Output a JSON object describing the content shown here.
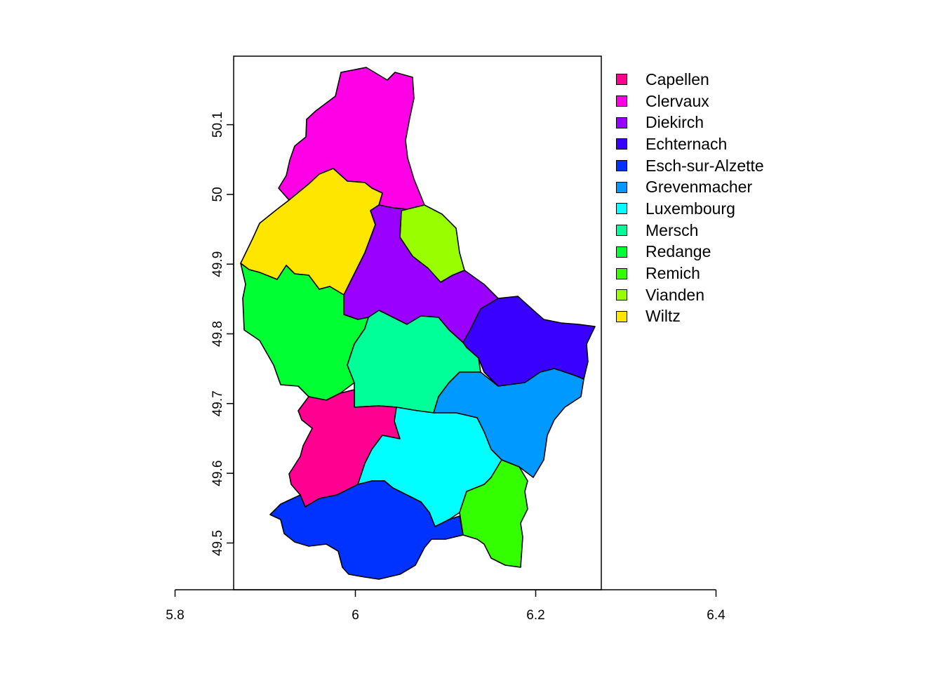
{
  "map": {
    "x_ticks": [
      "5.8",
      "6",
      "6.2",
      "6.4"
    ],
    "y_ticks": [
      "49.5",
      "49.6",
      "49.7",
      "49.8",
      "49.9",
      "50",
      "50.1"
    ]
  },
  "legend": [
    {
      "label": "Capellen",
      "color": "#FF0090"
    },
    {
      "label": "Clervaux",
      "color": "#FF00E6"
    },
    {
      "label": "Diekirch",
      "color": "#9900FF"
    },
    {
      "label": "Echternach",
      "color": "#3A00FF"
    },
    {
      "label": "Esch-sur-Alzette",
      "color": "#0033FF"
    },
    {
      "label": "Grevenmacher",
      "color": "#0099FF"
    },
    {
      "label": "Luxembourg",
      "color": "#00FFFF"
    },
    {
      "label": "Mersch",
      "color": "#00FF99"
    },
    {
      "label": "Redange",
      "color": "#00FF33"
    },
    {
      "label": "Remich",
      "color": "#33FF00"
    },
    {
      "label": "Vianden",
      "color": "#99FF00"
    },
    {
      "label": "Wiltz",
      "color": "#FFE600"
    }
  ]
}
